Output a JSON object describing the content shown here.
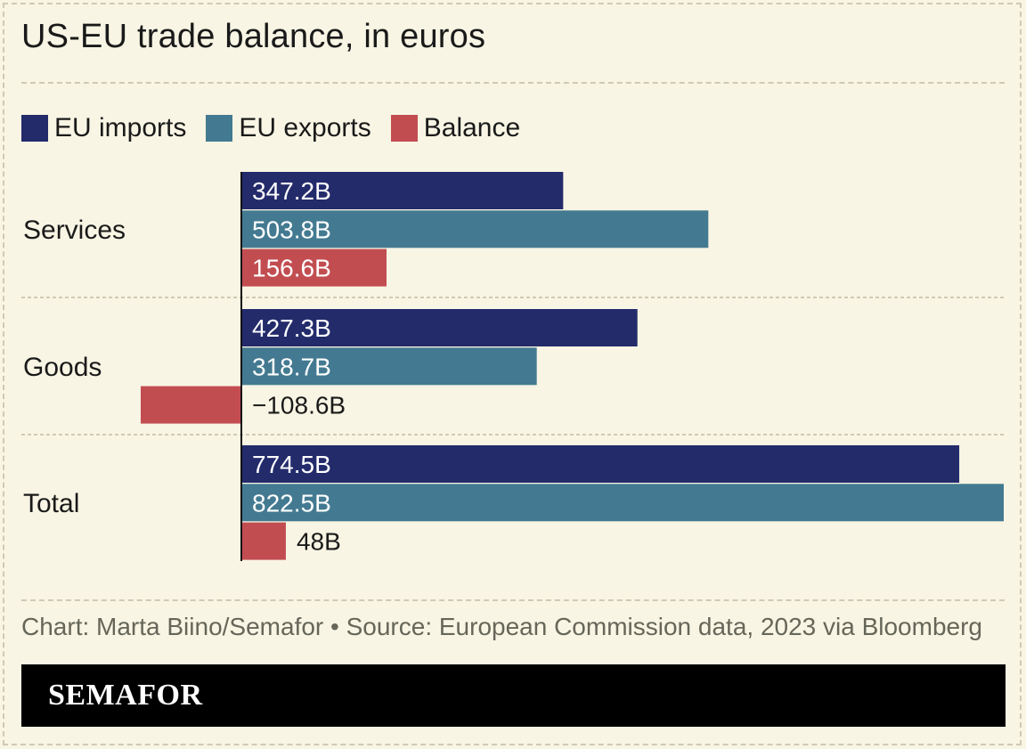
{
  "title": "US-EU trade balance, in euros",
  "legend": [
    {
      "label": "EU imports",
      "color": "#232b6b"
    },
    {
      "label": "EU exports",
      "color": "#437a91"
    },
    {
      "label": "Balance",
      "color": "#c24d51"
    }
  ],
  "chart_data": {
    "type": "bar",
    "orientation": "horizontal",
    "categories": [
      "Services",
      "Goods",
      "Total"
    ],
    "series": [
      {
        "name": "EU imports",
        "color": "#232b6b",
        "values": [
          347.2,
          427.3,
          774.5
        ],
        "labels": [
          "347.2B",
          "427.3B",
          "774.5B"
        ]
      },
      {
        "name": "EU exports",
        "color": "#437a91",
        "values": [
          503.8,
          318.7,
          822.5
        ],
        "labels": [
          "503.8B",
          "318.7B",
          "822.5B"
        ]
      },
      {
        "name": "Balance",
        "color": "#c24d51",
        "values": [
          156.6,
          -108.6,
          48
        ],
        "labels": [
          "156.6B",
          "−108.6B",
          "48B"
        ]
      }
    ],
    "unit": "B euros",
    "xlim": [
      -108.6,
      822.5
    ],
    "title": "US-EU trade balance, in euros",
    "xlabel": "",
    "ylabel": ""
  },
  "source": "Chart: Marta Biino/Semafor • Source: European Commission data, 2023 via Bloomberg",
  "brand": "SEMAFOR"
}
